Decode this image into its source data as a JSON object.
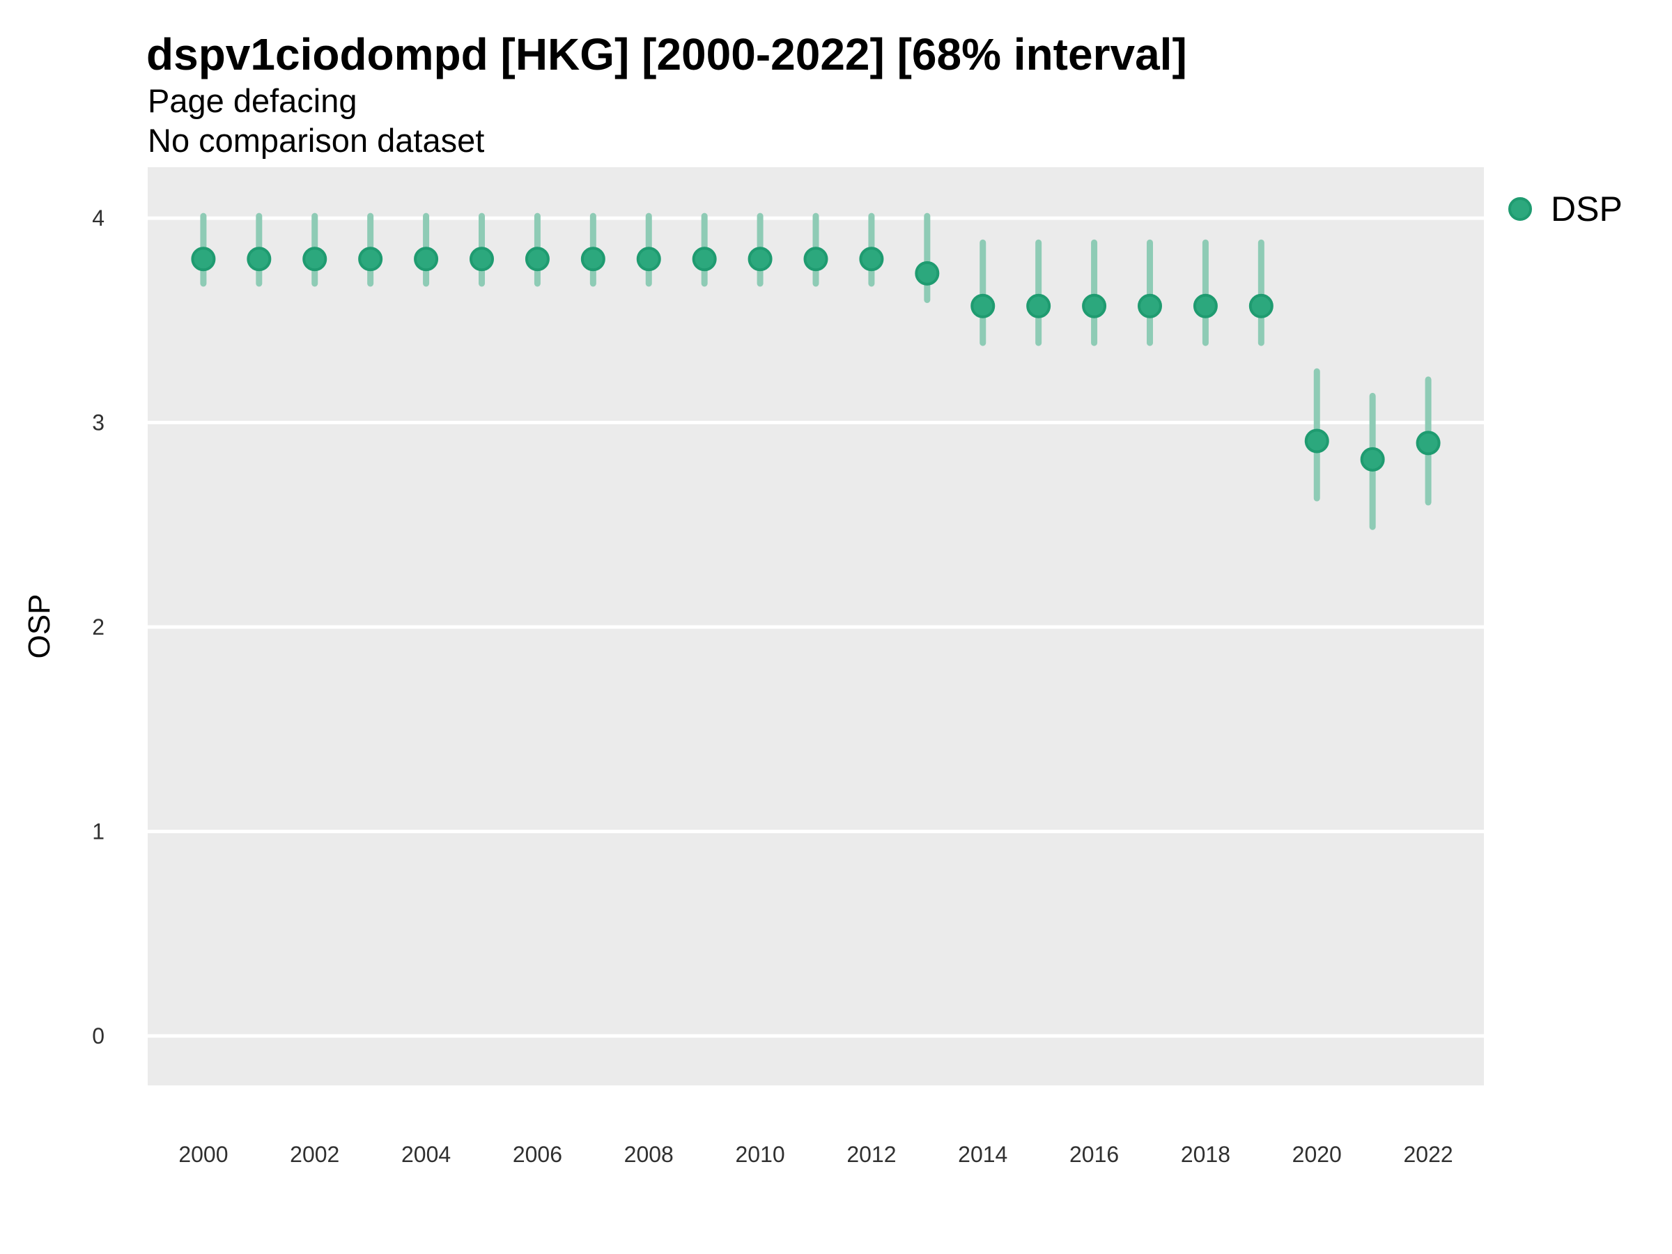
{
  "title": "dspv1ciodompd [HKG] [2000-2022] [68% interval]",
  "subtitle1": "Page defacing",
  "subtitle2": "No comparison dataset",
  "y_axis_label": "OSP",
  "legend": {
    "items": [
      {
        "label": "DSP",
        "marker": "circle"
      }
    ],
    "position": "right-top"
  },
  "colors": {
    "point_fill": "#2ca87d",
    "point_stroke": "#1f9b70",
    "interval_line": "#8ecbb5",
    "panel_background": "#ebebeb",
    "gridline": "#ffffff",
    "tick_label": "#303030",
    "text": "#000000"
  },
  "chart_data": {
    "type": "scatter",
    "subtype": "pointrange-interval",
    "interval_level": "68%",
    "x": [
      2000,
      2001,
      2002,
      2003,
      2004,
      2005,
      2006,
      2007,
      2008,
      2009,
      2010,
      2011,
      2012,
      2013,
      2014,
      2015,
      2016,
      2017,
      2018,
      2019,
      2020,
      2021,
      2022
    ],
    "series": [
      {
        "name": "DSP",
        "mean": [
          3.8,
          3.8,
          3.8,
          3.8,
          3.8,
          3.8,
          3.8,
          3.8,
          3.8,
          3.8,
          3.8,
          3.8,
          3.8,
          3.73,
          3.57,
          3.57,
          3.57,
          3.57,
          3.57,
          3.57,
          2.91,
          2.82,
          2.9
        ],
        "lo": [
          3.68,
          3.68,
          3.68,
          3.68,
          3.68,
          3.68,
          3.68,
          3.68,
          3.68,
          3.68,
          3.68,
          3.68,
          3.68,
          3.6,
          3.39,
          3.39,
          3.39,
          3.39,
          3.39,
          3.39,
          2.63,
          2.49,
          2.61
        ],
        "hi": [
          4.01,
          4.01,
          4.01,
          4.01,
          4.01,
          4.01,
          4.01,
          4.01,
          4.01,
          4.01,
          4.01,
          4.01,
          4.01,
          4.01,
          3.88,
          3.88,
          3.88,
          3.88,
          3.88,
          3.88,
          3.25,
          3.13,
          3.21
        ]
      }
    ],
    "title": "dspv1ciodompd [HKG] [2000-2022] [68% interval]",
    "xlabel": "",
    "ylabel": "OSP",
    "x_ticks": [
      2000,
      2002,
      2004,
      2006,
      2008,
      2010,
      2012,
      2014,
      2016,
      2018,
      2020,
      2022
    ],
    "y_ticks": [
      0,
      1,
      2,
      3,
      4
    ],
    "xlim": [
      1999.0,
      2023.0
    ],
    "ylim": [
      -0.24,
      4.25
    ],
    "grid": "major-horizontal-white",
    "legend_position": "right-top"
  }
}
